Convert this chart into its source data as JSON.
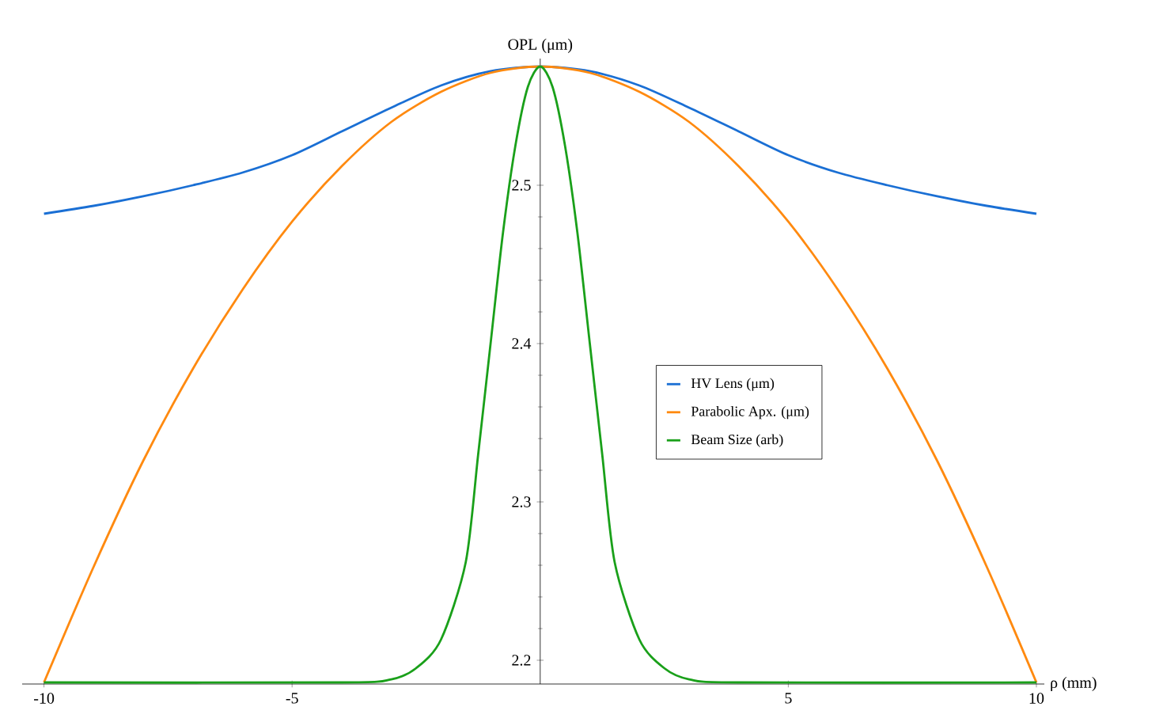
{
  "chart_data": {
    "type": "line",
    "xlabel": "ρ (mm)",
    "ylabel": "OPL (μm)",
    "xlim": [
      -10.44,
      10.16
    ],
    "ylim": [
      2.185,
      2.58
    ],
    "xticks": [
      -10,
      -5,
      5,
      10
    ],
    "yticks": [
      2.2,
      2.3,
      2.4,
      2.5
    ],
    "legend": "right",
    "series": [
      {
        "name": "HV Lens (μm)",
        "color": "#1a6fd4",
        "x": [
          -10,
          -9,
          -8,
          -7,
          -6,
          -5,
          -4,
          -3,
          -2,
          -1,
          0,
          1,
          2,
          3,
          4,
          5,
          6,
          7,
          8,
          9,
          10
        ],
        "values": [
          2.482,
          2.487,
          2.493,
          2.5,
          2.508,
          2.519,
          2.534,
          2.549,
          2.563,
          2.572,
          2.575,
          2.572,
          2.563,
          2.549,
          2.534,
          2.519,
          2.508,
          2.5,
          2.493,
          2.487,
          2.482
        ]
      },
      {
        "name": "Parabolic Apx. (μm)",
        "color": "#ff8a10",
        "x": [
          -10,
          -9,
          -8,
          -7,
          -6,
          -5,
          -4,
          -3,
          -2,
          -1,
          0,
          1,
          2,
          3,
          4,
          5,
          6,
          7,
          8,
          9,
          10
        ],
        "values": [
          2.186,
          2.259,
          2.326,
          2.384,
          2.434,
          2.477,
          2.512,
          2.54,
          2.559,
          2.571,
          2.575,
          2.571,
          2.559,
          2.54,
          2.512,
          2.477,
          2.434,
          2.384,
          2.326,
          2.259,
          2.186
        ]
      },
      {
        "name": "Beam Size (arb)",
        "color": "#1aa01a",
        "x": [
          -10,
          -4,
          -3,
          -2.5,
          -2,
          -1.5,
          -1.25,
          -1,
          -0.75,
          -0.5,
          -0.25,
          0,
          0.25,
          0.5,
          0.75,
          1,
          1.25,
          1.5,
          2,
          2.5,
          3,
          4,
          10
        ],
        "values": [
          2.186,
          2.186,
          2.188,
          2.195,
          2.213,
          2.262,
          2.33,
          2.4,
          2.47,
          2.525,
          2.562,
          2.575,
          2.562,
          2.525,
          2.47,
          2.4,
          2.33,
          2.262,
          2.213,
          2.195,
          2.188,
          2.186,
          2.186
        ]
      }
    ]
  }
}
